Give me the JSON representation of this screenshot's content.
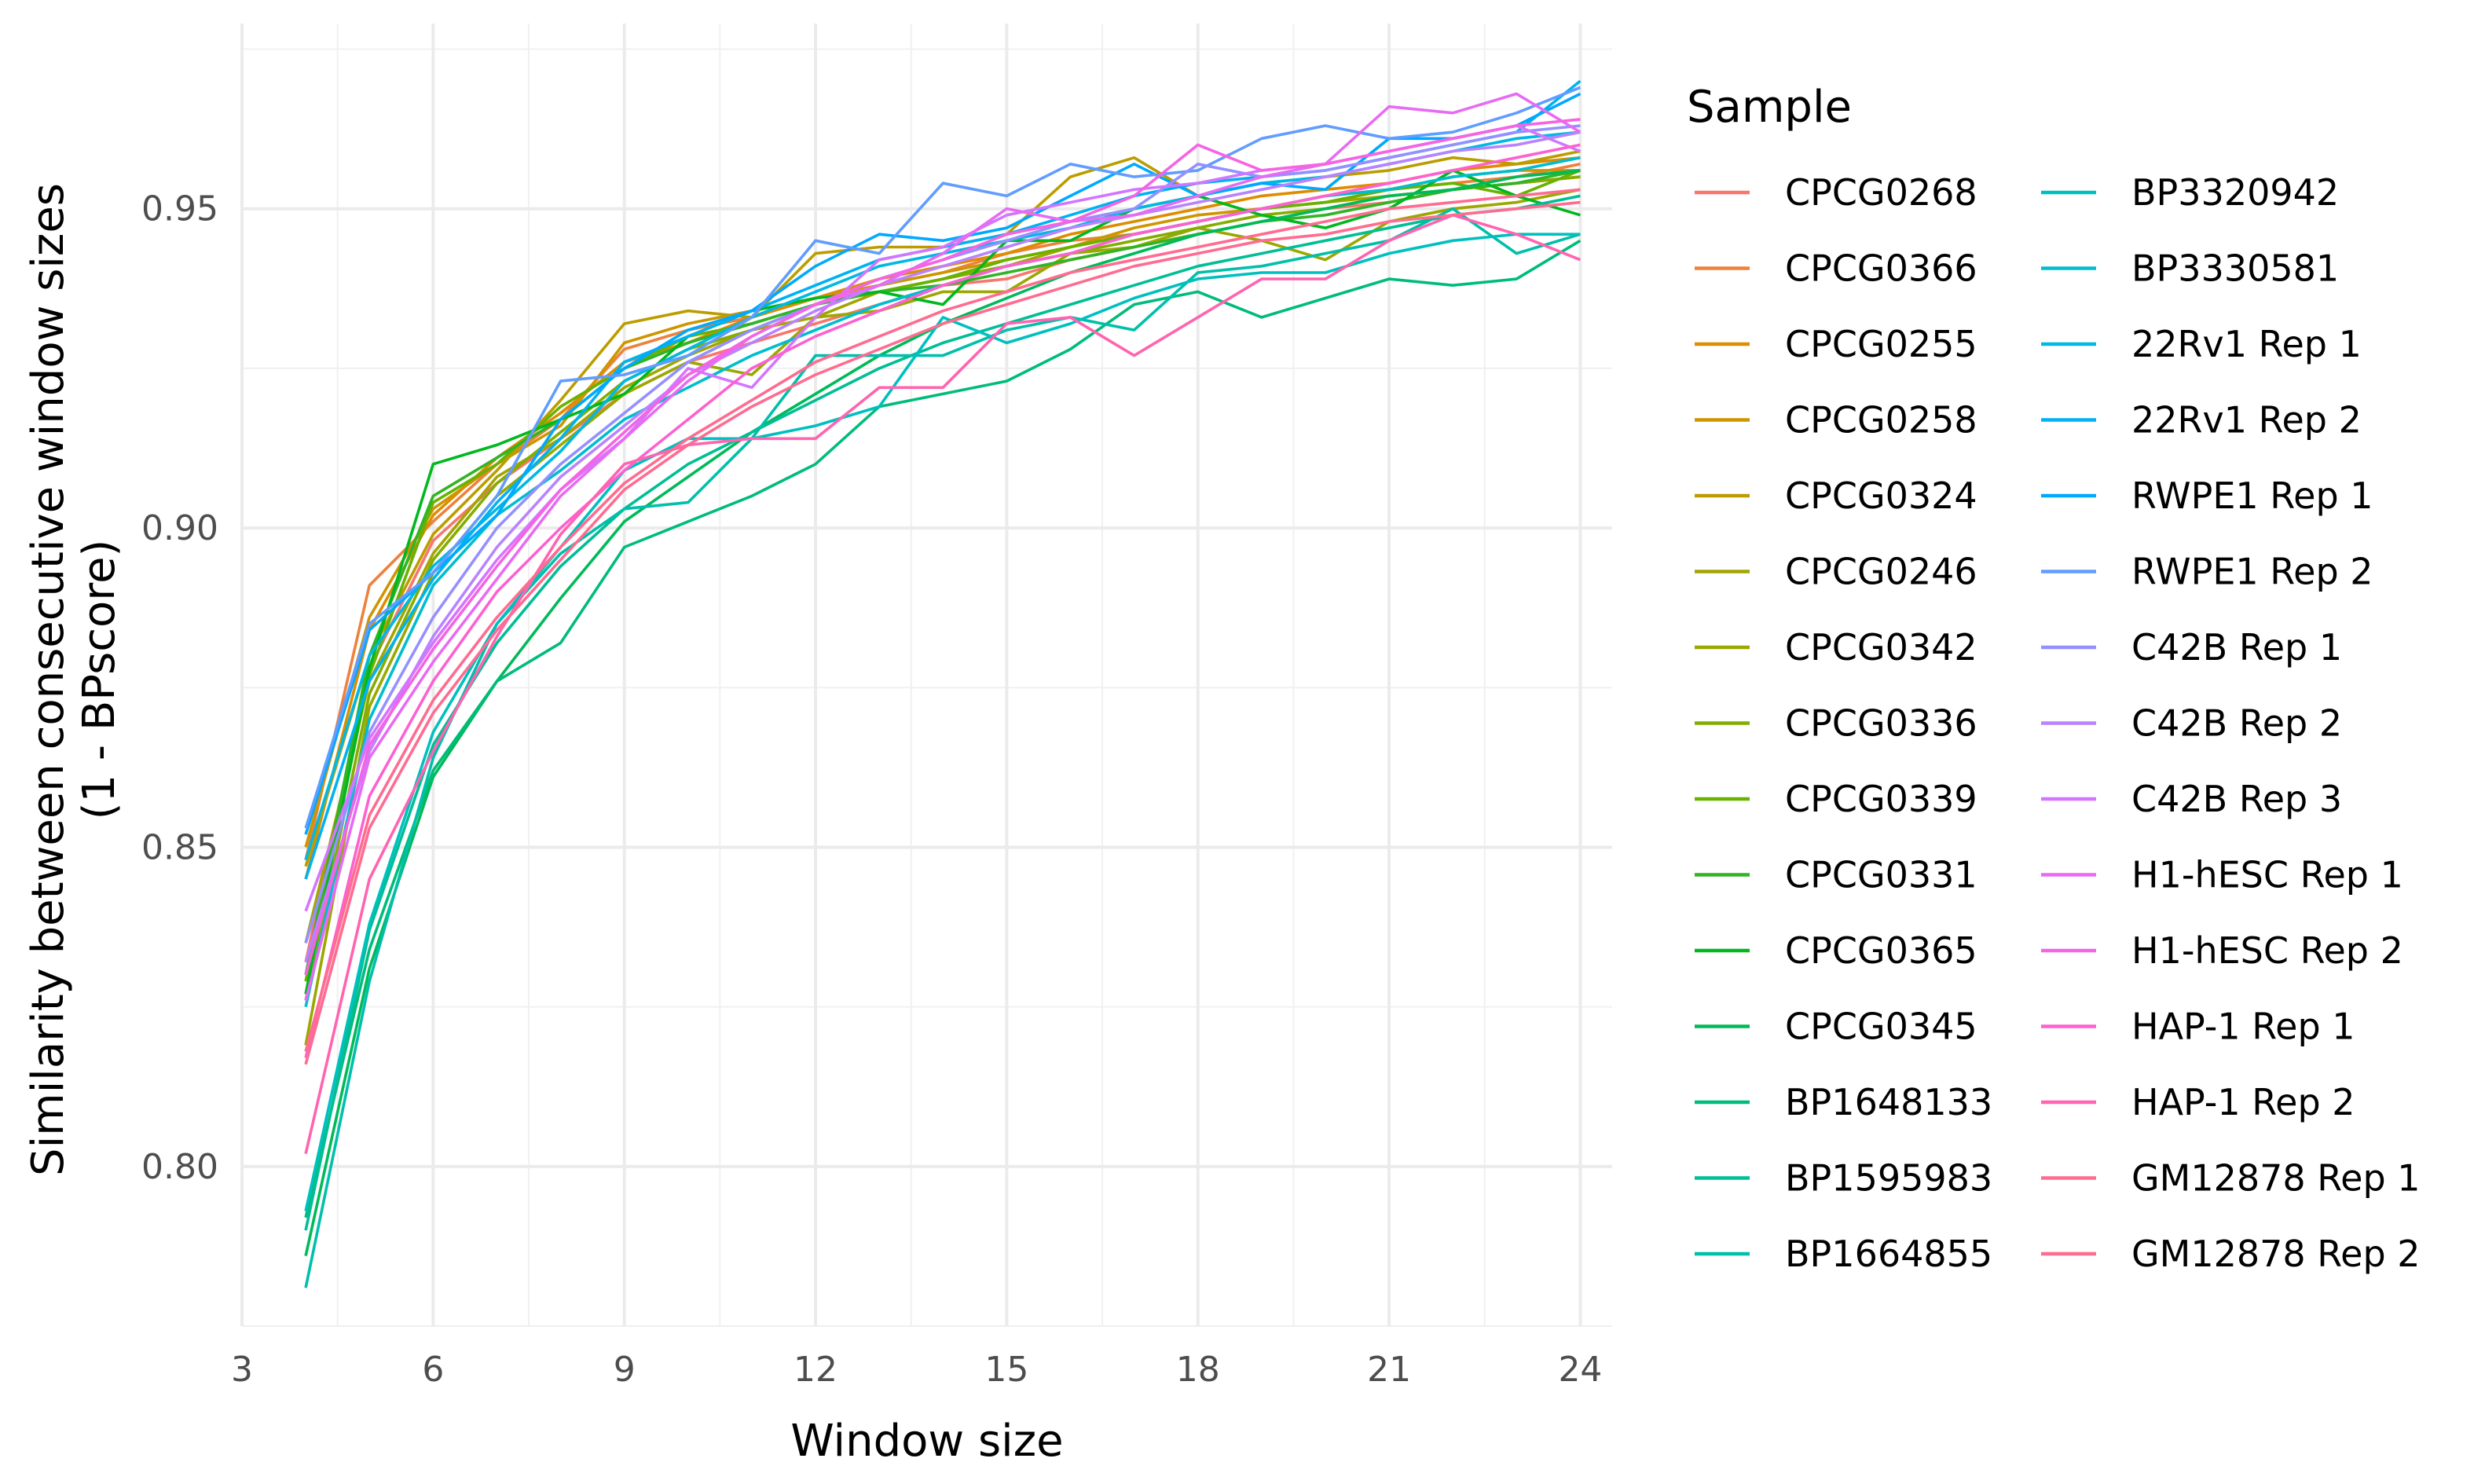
{
  "chart_data": {
    "type": "line",
    "xlabel": "Window size",
    "ylabel_lines": [
      "Similarity between consecutive window sizes",
      "(1 - BPscore)"
    ],
    "legend_title": "Sample",
    "legend_position": "right",
    "grid": true,
    "xlim": [
      3,
      24.5
    ],
    "ylim": [
      0.775,
      0.979
    ],
    "x_ticks": [
      3,
      6,
      9,
      12,
      15,
      18,
      21,
      24
    ],
    "x_tick_labels": [
      "3",
      "6",
      "9",
      "12",
      "15",
      "18",
      "21",
      "24"
    ],
    "y_ticks": [
      0.8,
      0.85,
      0.9,
      0.95
    ],
    "y_tick_labels": [
      "0.80",
      "0.85",
      "0.90",
      "0.95"
    ],
    "x": [
      4,
      5,
      6,
      7,
      8,
      9,
      10,
      11,
      12,
      13,
      14,
      15,
      16,
      17,
      18,
      19,
      20,
      21,
      22,
      23,
      24
    ],
    "series": [
      {
        "name": "CPCG0268",
        "color": "#F8766D",
        "values": [
          0.832,
          0.878,
          0.898,
          0.907,
          0.914,
          0.921,
          0.926,
          0.929,
          0.932,
          0.935,
          0.938,
          0.939,
          0.942,
          0.944,
          0.946,
          0.948,
          0.95,
          0.951,
          0.953,
          0.954,
          0.955
        ]
      },
      {
        "name": "CPCG0366",
        "color": "#ED813E",
        "values": [
          0.848,
          0.891,
          0.901,
          0.91,
          0.917,
          0.928,
          0.931,
          0.933,
          0.936,
          0.938,
          0.94,
          0.943,
          0.945,
          0.946,
          0.948,
          0.95,
          0.951,
          0.953,
          0.954,
          0.955,
          0.957
        ]
      },
      {
        "name": "CPCG0255",
        "color": "#DE8C00",
        "values": [
          0.845,
          0.884,
          0.902,
          0.911,
          0.918,
          0.926,
          0.929,
          0.933,
          0.936,
          0.939,
          0.941,
          0.943,
          0.946,
          0.948,
          0.95,
          0.952,
          0.953,
          0.954,
          0.956,
          0.957,
          0.958
        ]
      },
      {
        "name": "CPCG0258",
        "color": "#CD9600",
        "values": [
          0.85,
          0.886,
          0.903,
          0.91,
          0.916,
          0.929,
          0.932,
          0.934,
          0.936,
          0.938,
          0.94,
          0.942,
          0.944,
          0.947,
          0.949,
          0.95,
          0.952,
          0.953,
          0.955,
          0.956,
          0.956
        ]
      },
      {
        "name": "CPCG0324",
        "color": "#BB9D00",
        "values": [
          0.847,
          0.88,
          0.899,
          0.909,
          0.92,
          0.932,
          0.934,
          0.933,
          0.943,
          0.944,
          0.944,
          0.946,
          0.955,
          0.958,
          0.952,
          0.954,
          0.955,
          0.956,
          0.958,
          0.957,
          0.959
        ]
      },
      {
        "name": "CPCG0246",
        "color": "#A3A500",
        "values": [
          0.835,
          0.876,
          0.896,
          0.908,
          0.914,
          0.922,
          0.927,
          0.931,
          0.933,
          0.937,
          0.939,
          0.941,
          0.944,
          0.946,
          0.948,
          0.95,
          0.951,
          0.952,
          0.953,
          0.954,
          0.955
        ]
      },
      {
        "name": "CPCG0342",
        "color": "#9AA800",
        "values": [
          0.819,
          0.872,
          0.893,
          0.905,
          0.913,
          0.921,
          0.926,
          0.924,
          0.933,
          0.934,
          0.937,
          0.937,
          0.943,
          0.944,
          0.947,
          0.945,
          0.942,
          0.948,
          0.95,
          0.951,
          0.953
        ]
      },
      {
        "name": "CPCG0336",
        "color": "#85AD00",
        "values": [
          0.826,
          0.874,
          0.895,
          0.907,
          0.915,
          0.923,
          0.928,
          0.931,
          0.935,
          0.937,
          0.939,
          0.941,
          0.943,
          0.945,
          0.947,
          0.949,
          0.95,
          0.952,
          0.953,
          0.954,
          0.955
        ]
      },
      {
        "name": "CPCG0339",
        "color": "#68B200",
        "values": [
          0.829,
          0.877,
          0.904,
          0.91,
          0.919,
          0.925,
          0.93,
          0.932,
          0.935,
          0.937,
          0.939,
          0.942,
          0.944,
          0.946,
          0.948,
          0.95,
          0.951,
          0.953,
          0.954,
          0.952,
          0.956
        ]
      },
      {
        "name": "CPCG0331",
        "color": "#31B425",
        "values": [
          0.83,
          0.88,
          0.905,
          0.911,
          0.917,
          0.925,
          0.929,
          0.932,
          0.935,
          0.937,
          0.938,
          0.94,
          0.942,
          0.944,
          0.946,
          0.948,
          0.949,
          0.951,
          0.953,
          0.954,
          0.956
        ]
      },
      {
        "name": "CPCG0365",
        "color": "#00B81F",
        "values": [
          0.827,
          0.878,
          0.91,
          0.913,
          0.917,
          0.921,
          0.93,
          0.934,
          0.936,
          0.937,
          0.935,
          0.945,
          0.945,
          0.95,
          0.952,
          0.949,
          0.947,
          0.95,
          0.956,
          0.952,
          0.949
        ]
      },
      {
        "name": "CPCG0345",
        "color": "#00BA5A",
        "values": [
          0.786,
          0.831,
          0.861,
          0.876,
          0.889,
          0.901,
          0.908,
          0.915,
          0.921,
          0.927,
          0.932,
          0.936,
          0.94,
          0.943,
          0.946,
          0.948,
          0.95,
          0.952,
          0.953,
          0.955,
          0.956
        ]
      },
      {
        "name": "BP1648133",
        "color": "#00BC7B",
        "values": [
          0.792,
          0.834,
          0.862,
          0.876,
          0.882,
          0.897,
          0.901,
          0.905,
          0.91,
          0.919,
          0.921,
          0.923,
          0.928,
          0.935,
          0.937,
          0.933,
          0.936,
          0.939,
          0.938,
          0.939,
          0.945
        ]
      },
      {
        "name": "BP1595983",
        "color": "#00BE95",
        "values": [
          0.79,
          0.837,
          0.866,
          0.882,
          0.894,
          0.903,
          0.91,
          0.915,
          0.92,
          0.925,
          0.929,
          0.932,
          0.935,
          0.938,
          0.941,
          0.943,
          0.945,
          0.947,
          0.949,
          0.95,
          0.952
        ]
      },
      {
        "name": "BP1664855",
        "color": "#00BFAB",
        "values": [
          0.781,
          0.829,
          0.864,
          0.885,
          0.896,
          0.903,
          0.904,
          0.914,
          0.927,
          0.927,
          0.927,
          0.931,
          0.933,
          0.931,
          0.94,
          0.941,
          0.943,
          0.945,
          0.95,
          0.943,
          0.946
        ]
      },
      {
        "name": "BP3320942",
        "color": "#00C0BF",
        "values": [
          0.793,
          0.838,
          0.868,
          0.885,
          0.897,
          0.909,
          0.914,
          0.914,
          0.916,
          0.919,
          0.933,
          0.929,
          0.932,
          0.936,
          0.939,
          0.94,
          0.94,
          0.943,
          0.945,
          0.946,
          0.946
        ]
      },
      {
        "name": "BP3330581",
        "color": "#00BDD0",
        "values": [
          0.825,
          0.87,
          0.891,
          0.902,
          0.909,
          0.917,
          0.922,
          0.927,
          0.931,
          0.935,
          0.938,
          0.941,
          0.943,
          0.946,
          0.948,
          0.95,
          0.952,
          0.953,
          0.955,
          0.956,
          0.958
        ]
      },
      {
        "name": "22Rv1 Rep 1",
        "color": "#00B9E3",
        "values": [
          0.848,
          0.88,
          0.894,
          0.903,
          0.912,
          0.923,
          0.928,
          0.933,
          0.937,
          0.941,
          0.943,
          0.945,
          0.947,
          0.95,
          0.952,
          0.954,
          0.955,
          0.957,
          0.959,
          0.961,
          0.962
        ]
      },
      {
        "name": "22Rv1 Rep 2",
        "color": "#00B2F3",
        "values": [
          0.845,
          0.876,
          0.892,
          0.904,
          0.914,
          0.926,
          0.93,
          0.934,
          0.938,
          0.942,
          0.944,
          0.946,
          0.949,
          0.952,
          0.954,
          0.955,
          0.956,
          0.958,
          0.96,
          0.962,
          0.97
        ]
      },
      {
        "name": "RWPE1 Rep 1",
        "color": "#00A9FF",
        "values": [
          0.852,
          0.884,
          0.893,
          0.902,
          0.917,
          0.925,
          0.931,
          0.934,
          0.941,
          0.946,
          0.945,
          0.947,
          0.952,
          0.957,
          0.952,
          0.954,
          0.953,
          0.961,
          0.961,
          0.963,
          0.968
        ]
      },
      {
        "name": "RWPE1 Rep 2",
        "color": "#619CFF",
        "values": [
          0.853,
          0.885,
          0.893,
          0.905,
          0.923,
          0.924,
          0.927,
          0.933,
          0.945,
          0.943,
          0.954,
          0.952,
          0.957,
          0.955,
          0.956,
          0.961,
          0.963,
          0.961,
          0.962,
          0.965,
          0.969
        ]
      },
      {
        "name": "C42B Rep 1",
        "color": "#9590FF",
        "values": [
          0.835,
          0.868,
          0.886,
          0.9,
          0.91,
          0.918,
          0.926,
          0.931,
          0.935,
          0.939,
          0.942,
          0.945,
          0.948,
          0.95,
          0.957,
          0.955,
          0.956,
          0.958,
          0.96,
          0.962,
          0.963
        ]
      },
      {
        "name": "C42B Rep 2",
        "color": "#B983FF",
        "values": [
          0.832,
          0.865,
          0.883,
          0.897,
          0.908,
          0.916,
          0.924,
          0.929,
          0.934,
          0.938,
          0.941,
          0.944,
          0.947,
          0.949,
          0.951,
          0.953,
          0.955,
          0.957,
          0.959,
          0.96,
          0.962
        ]
      },
      {
        "name": "C42B Rep 3",
        "color": "#D376FF",
        "values": [
          0.84,
          0.867,
          0.882,
          0.895,
          0.906,
          0.914,
          0.925,
          0.922,
          0.933,
          0.942,
          0.944,
          0.949,
          0.951,
          0.953,
          0.954,
          0.956,
          0.957,
          0.959,
          0.961,
          0.963,
          0.959
        ]
      },
      {
        "name": "H1-hESC Rep 1",
        "color": "#E76BF3",
        "values": [
          0.826,
          0.864,
          0.879,
          0.892,
          0.905,
          0.914,
          0.923,
          0.93,
          0.935,
          0.938,
          0.943,
          0.95,
          0.948,
          0.949,
          0.952,
          0.955,
          0.957,
          0.966,
          0.965,
          0.968,
          0.962
        ]
      },
      {
        "name": "H1-hESC Rep 2",
        "color": "#F564E3",
        "values": [
          0.83,
          0.866,
          0.881,
          0.894,
          0.906,
          0.915,
          0.924,
          0.93,
          0.935,
          0.939,
          0.942,
          0.946,
          0.948,
          0.952,
          0.96,
          0.956,
          0.957,
          0.959,
          0.961,
          0.963,
          0.964
        ]
      },
      {
        "name": "HAP-1 Rep 1",
        "color": "#FD61D1",
        "values": [
          0.817,
          0.858,
          0.876,
          0.89,
          0.9,
          0.909,
          0.917,
          0.925,
          0.93,
          0.934,
          0.938,
          0.941,
          0.943,
          0.946,
          0.948,
          0.95,
          0.952,
          0.954,
          0.956,
          0.958,
          0.96
        ]
      },
      {
        "name": "HAP-1 Rep 2",
        "color": "#FF64B0",
        "values": [
          0.802,
          0.845,
          0.865,
          0.883,
          0.899,
          0.91,
          0.913,
          0.914,
          0.914,
          0.922,
          0.922,
          0.932,
          0.933,
          0.927,
          0.933,
          0.939,
          0.939,
          0.945,
          0.949,
          0.946,
          0.942
        ]
      },
      {
        "name": "GM12878 Rep 1",
        "color": "#FF6C91",
        "values": [
          0.816,
          0.853,
          0.871,
          0.884,
          0.895,
          0.906,
          0.913,
          0.919,
          0.924,
          0.928,
          0.932,
          0.935,
          0.938,
          0.941,
          0.943,
          0.945,
          0.946,
          0.948,
          0.949,
          0.95,
          0.951
        ]
      },
      {
        "name": "GM12878 Rep 2",
        "color": "#FF6C91",
        "values": [
          0.818,
          0.855,
          0.873,
          0.886,
          0.897,
          0.907,
          0.914,
          0.92,
          0.926,
          0.93,
          0.934,
          0.937,
          0.94,
          0.942,
          0.944,
          0.946,
          0.948,
          0.95,
          0.951,
          0.952,
          0.953
        ]
      }
    ]
  }
}
